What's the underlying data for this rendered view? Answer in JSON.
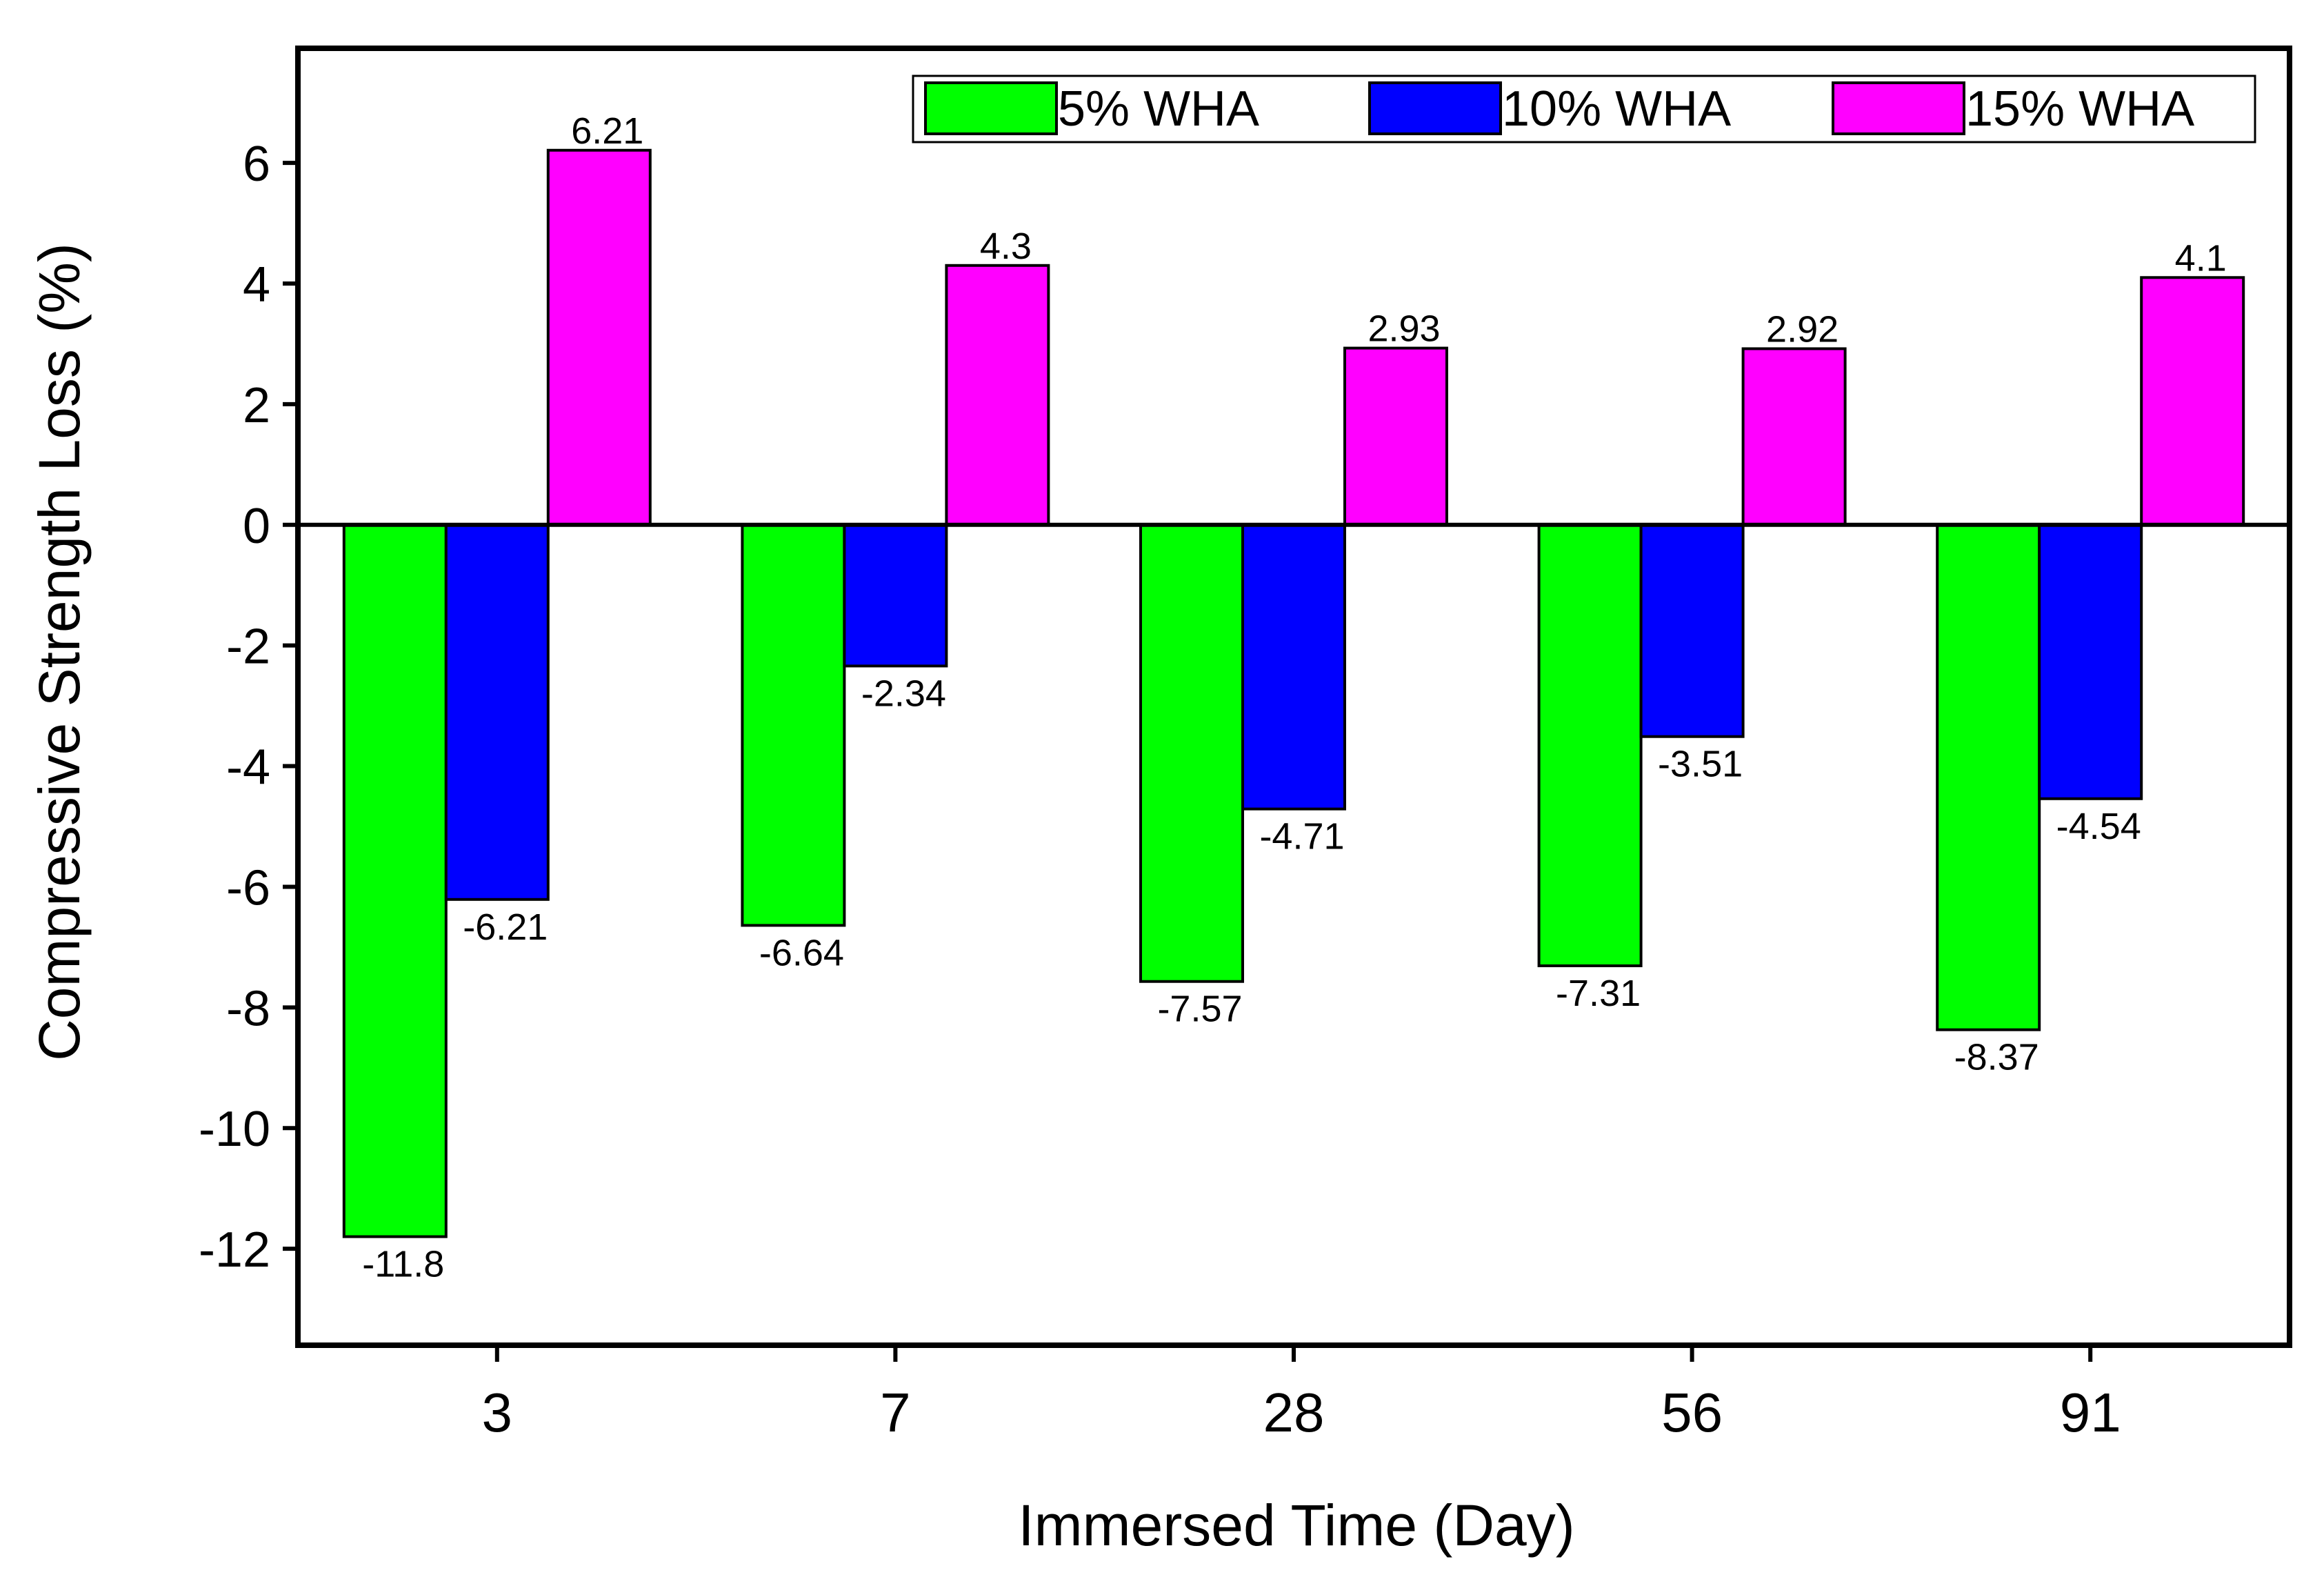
{
  "chart_data": {
    "type": "bar",
    "title": "",
    "xlabel": "Immersed Time (Day)",
    "ylabel": "Compressive Strength Loss (%)",
    "categories": [
      "3",
      "7",
      "28",
      "56",
      "91"
    ],
    "ylim": [
      -13.6,
      7.9
    ],
    "yticks": [
      6,
      4,
      2,
      0,
      -2,
      -4,
      -6,
      -8,
      -10,
      -12
    ],
    "grid": false,
    "legend_position": "top-right",
    "series": [
      {
        "name": "5% WHA",
        "color": "#00ff00",
        "values": [
          -11.8,
          -6.64,
          -7.57,
          -7.31,
          -8.37
        ],
        "labels": [
          "-11.8",
          "-6.64",
          "-7.57",
          "-7.31",
          "-8.37"
        ]
      },
      {
        "name": "10% WHA",
        "color": "#0000ff",
        "values": [
          -6.21,
          -2.34,
          -4.71,
          -3.51,
          -4.54
        ],
        "labels": [
          "-6.21",
          "-2.34",
          "-4.71",
          "-3.51",
          "-4.54"
        ]
      },
      {
        "name": "15% WHA",
        "color": "#ff00ff",
        "values": [
          6.21,
          4.3,
          2.93,
          2.92,
          4.1
        ],
        "labels": [
          "6.21",
          "4.3",
          "2.93",
          "2.92",
          "4.1"
        ]
      }
    ]
  }
}
